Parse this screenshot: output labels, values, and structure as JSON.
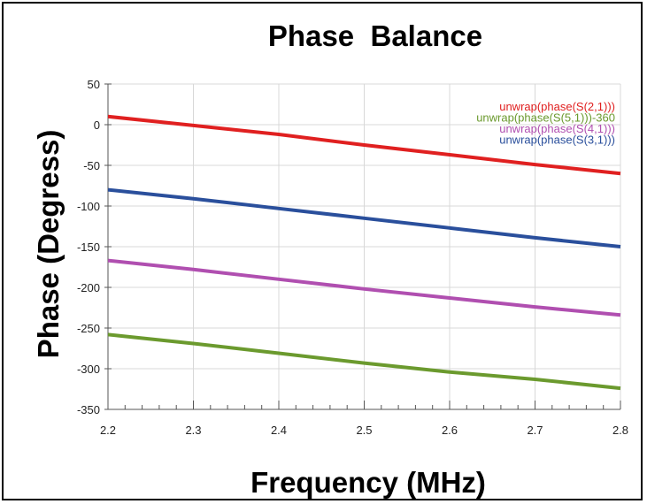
{
  "chart_data": {
    "type": "line",
    "title": "Phase  Balance",
    "xlabel": "Frequency (MHz)",
    "ylabel": "Phase (Degress)",
    "xlim": [
      2.2,
      2.8
    ],
    "ylim": [
      -350,
      50
    ],
    "x_ticks": [
      "2.2",
      "2.3",
      "2.4",
      "2.5",
      "2.6",
      "2.7",
      "2.8"
    ],
    "y_ticks": [
      "50",
      "0",
      "-50",
      "-100",
      "-150",
      "-200",
      "-250",
      "-300",
      "-350"
    ],
    "grid": true,
    "legend_position": "top-right",
    "series": [
      {
        "name": "unwrap(phase(S(2,1)))",
        "color": "#e02020",
        "x": [
          2.2,
          2.3,
          2.4,
          2.5,
          2.6,
          2.7,
          2.8
        ],
        "values": [
          10,
          -1,
          -12,
          -25,
          -37,
          -49,
          -60
        ]
      },
      {
        "name": "unwrap(phase(S(5,1)))-360",
        "color": "#6b9a2e",
        "x": [
          2.2,
          2.3,
          2.4,
          2.5,
          2.6,
          2.7,
          2.8
        ],
        "values": [
          -258,
          -269,
          -281,
          -293,
          -304,
          -313,
          -324
        ]
      },
      {
        "name": "unwrap(phase(S(4,1)))",
        "color": "#b04fb0",
        "x": [
          2.2,
          2.3,
          2.4,
          2.5,
          2.6,
          2.7,
          2.8
        ],
        "values": [
          -167,
          -178,
          -190,
          -202,
          -213,
          -224,
          -234
        ]
      },
      {
        "name": "unwrap(phase(S(3,1)))",
        "color": "#2a4f9c",
        "x": [
          2.2,
          2.3,
          2.4,
          2.5,
          2.6,
          2.7,
          2.8
        ],
        "values": [
          -80,
          -91,
          -103,
          -115,
          -127,
          -139,
          -150
        ]
      }
    ]
  }
}
